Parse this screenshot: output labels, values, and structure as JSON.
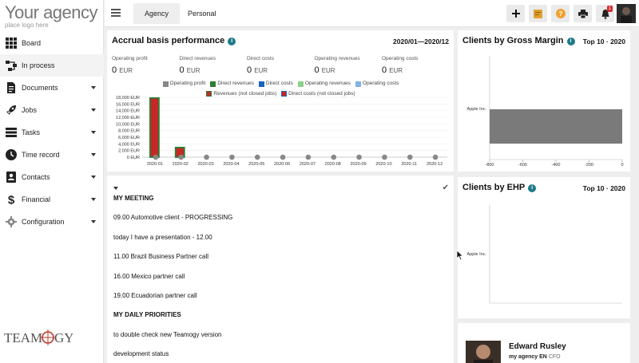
{
  "app": {
    "logo_title": "Your agency",
    "logo_sub": "place logo here",
    "brand": "TEAMOGY"
  },
  "sidebar": {
    "items": [
      {
        "label": "Board",
        "icon": "grid-icon",
        "expandable": false
      },
      {
        "label": "In process",
        "icon": "flow-icon",
        "expandable": false
      },
      {
        "label": "Documents",
        "icon": "document-icon",
        "expandable": true
      },
      {
        "label": "Jobs",
        "icon": "rocket-icon",
        "expandable": true
      },
      {
        "label": "Tasks",
        "icon": "tasks-icon",
        "expandable": true
      },
      {
        "label": "Time record",
        "icon": "clock-icon",
        "expandable": true
      },
      {
        "label": "Contacts",
        "icon": "contacts-icon",
        "expandable": true
      },
      {
        "label": "Financial",
        "icon": "dollar-icon",
        "expandable": true
      },
      {
        "label": "Configuration",
        "icon": "gear-icon",
        "expandable": true
      }
    ]
  },
  "topbar": {
    "tabs": [
      {
        "label": "Agency",
        "active": true
      },
      {
        "label": "Personal",
        "active": false
      }
    ],
    "buttons": [
      "plus-icon",
      "note-icon",
      "help-icon",
      "print-icon",
      "bell-icon"
    ],
    "notification_count": "1"
  },
  "accrual": {
    "title": "Accrual basis performance",
    "period": "2020/01—2020/12",
    "metrics": [
      {
        "label": "Operating profit",
        "value": "0",
        "unit": "EUR"
      },
      {
        "label": "Direct revenues",
        "value": "0",
        "unit": "EUR"
      },
      {
        "label": "Direct costs",
        "value": "0",
        "unit": "EUR"
      },
      {
        "label": "Operating revenues",
        "value": "0",
        "unit": "EUR"
      },
      {
        "label": "Operating costs",
        "value": "0",
        "unit": "EUR"
      }
    ],
    "legend_row1": [
      {
        "label": "Operating profit",
        "color": "#888888",
        "border": ""
      },
      {
        "label": "Direct revenues",
        "color": "#2e7d32",
        "border": ""
      },
      {
        "label": "Direct costs",
        "color": "#1565c0",
        "border": ""
      },
      {
        "label": "Operating revenues",
        "color": "#8bd18b",
        "border": ""
      },
      {
        "label": "Operating costs",
        "color": "#7fb3e6",
        "border": ""
      }
    ],
    "legend_row2": [
      {
        "label": "Revenues (not closed jobs)",
        "color": "#c62828",
        "border": "#2e7d32"
      },
      {
        "label": "Direct costs (not closed jobs)",
        "color": "#c62828",
        "border": "#1565c0"
      }
    ]
  },
  "chart_data": [
    {
      "type": "bar",
      "title": "Accrual basis performance",
      "categories": [
        "2020-01",
        "2020-02",
        "2020-03",
        "2020-04",
        "2020-05",
        "2020-06",
        "2020-07",
        "2020-08",
        "2020-09",
        "2020-10",
        "2020-11",
        "2020-12"
      ],
      "yticks": [
        "18,000 EUR",
        "16,000 EUR",
        "14,000 EUR",
        "12,000 EUR",
        "10,000 EUR",
        "8,000 EUR",
        "6,000 EUR",
        "4,000 EUR",
        "2,000 EUR",
        "0 EUR"
      ],
      "ylim": [
        0,
        18000
      ],
      "series": [
        {
          "name": "Revenues (not closed jobs)",
          "values": [
            17800,
            2900,
            0,
            0,
            0,
            0,
            0,
            0,
            0,
            0,
            0,
            0
          ],
          "color": "#c62828",
          "border": "#2e7d32"
        },
        {
          "name": "Operating profit",
          "values": [
            0,
            0,
            0,
            0,
            0,
            0,
            0,
            0,
            0,
            0,
            0,
            0
          ],
          "color": "#888888"
        }
      ]
    },
    {
      "type": "bar",
      "title": "Clients by Gross Margin",
      "orientation": "horizontal",
      "categories": [
        "Apple Inc."
      ],
      "values": [
        -800
      ],
      "xticks": [
        "-800",
        "-600",
        "-400",
        "-200",
        "0"
      ],
      "xlim": [
        -800,
        0
      ],
      "color": "#7a7a7a"
    },
    {
      "type": "bar",
      "title": "Clients by EHP",
      "orientation": "horizontal",
      "categories": [
        "Apple Inc."
      ],
      "values": [
        0
      ]
    }
  ],
  "gross_margin": {
    "title": "Clients by Gross Margin",
    "top": "Top 10 · 2020"
  },
  "ehp": {
    "title": "Clients by EHP",
    "top": "Top 10 · 2020"
  },
  "notes": {
    "lines": [
      {
        "text": "MY MEETING",
        "bold": true
      },
      {
        "text": "09.00 Automotive client - PROGRESSING",
        "bold": false
      },
      {
        "text": "today I have a presentation - 12.00",
        "bold": false
      },
      {
        "text": "11.00 Brazil Business Partner call",
        "bold": false
      },
      {
        "text": "16.00 Mexico partner call",
        "bold": false
      },
      {
        "text": "19.00 Ecuadorian partner call",
        "bold": false
      },
      {
        "text": "MY DAILY PRIORITIES",
        "bold": true
      },
      {
        "text": "to double check new Teamogy version",
        "bold": false
      },
      {
        "text": "development status",
        "bold": false
      }
    ]
  },
  "person": {
    "name": "Edward Rusley",
    "company": "my agency",
    "lang": "EN",
    "role": "CFO"
  }
}
